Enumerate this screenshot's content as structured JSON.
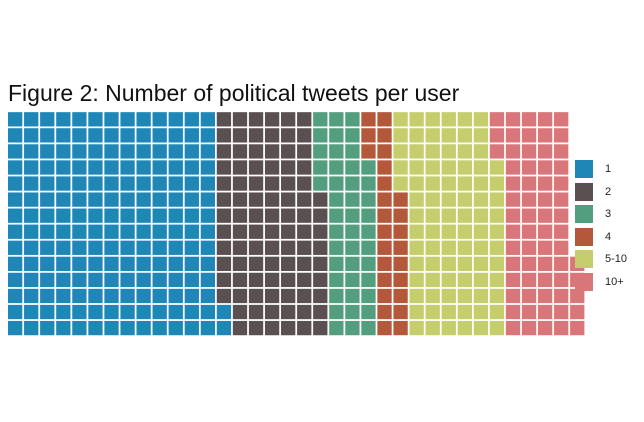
{
  "chart_data": {
    "type": "waffle",
    "title": "Figure 2: Number of political tweets per user",
    "rows": 14,
    "series": [
      {
        "name": "1",
        "color": "#1f87b6",
        "cells": 184
      },
      {
        "name": "2",
        "color": "#5a5052",
        "cells": 91
      },
      {
        "name": "3",
        "color": "#529e7e",
        "cells": 44
      },
      {
        "name": "4",
        "color": "#b3583a",
        "cells": 26
      },
      {
        "name": "5-10",
        "color": "#c5cd6d",
        "cells": 86
      },
      {
        "name": "10+",
        "color": "#d9767a",
        "cells": 64
      }
    ],
    "legend_position": "right",
    "grid": false
  }
}
